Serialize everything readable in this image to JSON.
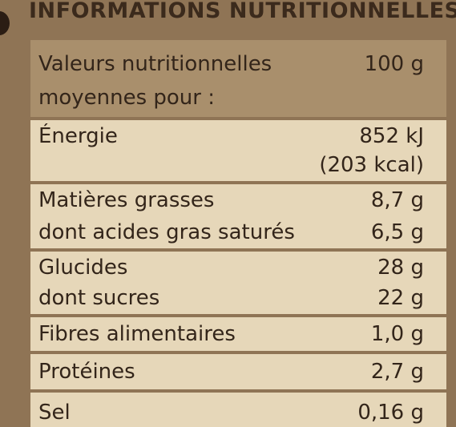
{
  "header": {
    "title": "INFORMATIONS NUTRITIONNELLES"
  },
  "table": {
    "header": {
      "label": [
        "Valeurs nutritionnelles",
        "moyennes pour :"
      ],
      "value": "100 g"
    },
    "rows": [
      {
        "lines": [
          [
            "Énergie",
            "852 kJ"
          ],
          [
            "",
            "(203 kcal)"
          ]
        ]
      },
      {
        "lines": [
          [
            "Matières grasses",
            "8,7 g"
          ],
          [
            "dont acides gras saturés",
            "6,5 g"
          ]
        ]
      },
      {
        "lines": [
          [
            "Glucides",
            "28 g"
          ],
          [
            "dont sucres",
            "22 g"
          ]
        ]
      },
      {
        "lines": [
          [
            "Fibres alimentaires",
            "1,0 g"
          ]
        ]
      },
      {
        "lines": [
          [
            "Protéines",
            "2,7 g"
          ]
        ]
      },
      {
        "lines": [
          [
            "Sel",
            "0,16 g"
          ]
        ]
      }
    ]
  }
}
